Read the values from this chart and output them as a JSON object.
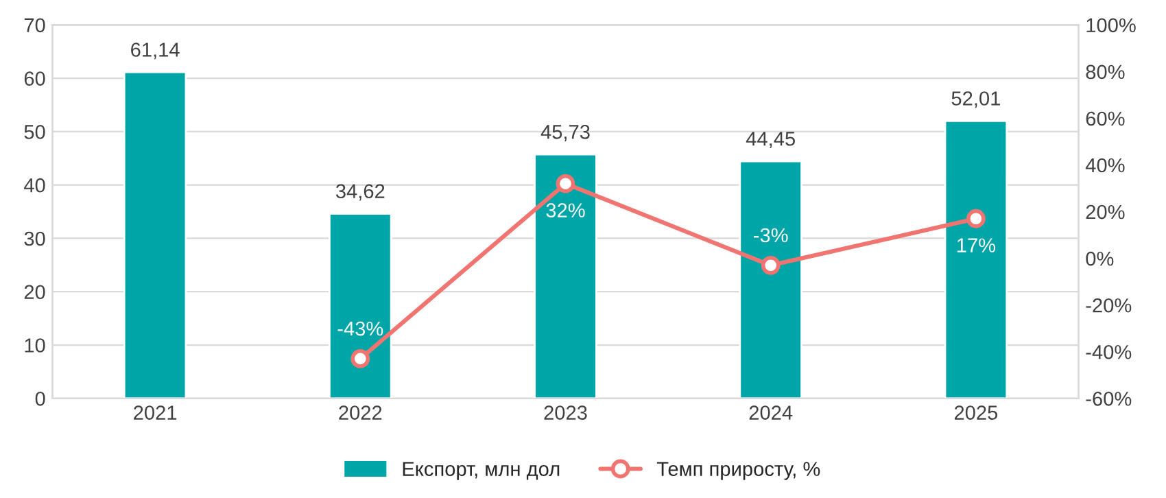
{
  "chart_data": {
    "type": "bar",
    "categories": [
      "2021",
      "2022",
      "2023",
      "2024",
      "2025"
    ],
    "series": [
      {
        "name": "Експорт, млн дол",
        "color": "#00a5a8",
        "values": [
          61.14,
          34.62,
          45.73,
          44.45,
          52.01
        ],
        "value_labels": [
          "61,14",
          "34,62",
          "45,73",
          "44,45",
          "52,01"
        ]
      },
      {
        "name": "Темп приросту, %",
        "type": "line",
        "axis": "y2",
        "color": "#f07470",
        "marker": "circle",
        "values": [
          null,
          -43,
          32,
          -3,
          17
        ],
        "value_labels": [
          null,
          "-43%",
          "32%",
          "-3%",
          "17%"
        ]
      }
    ],
    "ylim": [
      0,
      70
    ],
    "yticks": [
      0,
      10,
      20,
      30,
      40,
      50,
      60,
      70
    ],
    "y2lim": [
      -60,
      100
    ],
    "y2ticks": [
      {
        "value": -60,
        "label": "-60%"
      },
      {
        "value": -40,
        "label": "-40%"
      },
      {
        "value": -20,
        "label": "-20%"
      },
      {
        "value": 0,
        "label": "0%"
      },
      {
        "value": 20,
        "label": "20%"
      },
      {
        "value": 40,
        "label": "40%"
      },
      {
        "value": 60,
        "label": "60%"
      },
      {
        "value": 80,
        "label": "80%"
      },
      {
        "value": 100,
        "label": "100%"
      }
    ],
    "grid": "y",
    "legend": "bottom"
  }
}
